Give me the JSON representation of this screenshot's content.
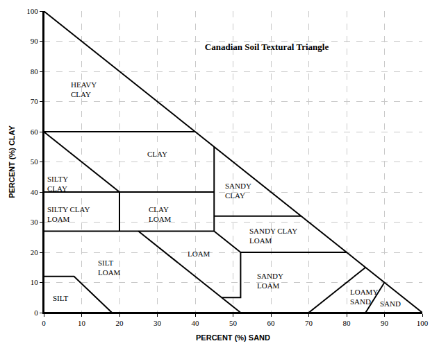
{
  "chart_data": {
    "type": "line",
    "title": "Canadian Soil Textural Triangle",
    "x_label": "PERCENT (%) SAND",
    "y_label": "PERCENT (%) CLAY",
    "xlim": [
      0,
      100
    ],
    "ylim": [
      0,
      100
    ],
    "xticks": [
      0,
      10,
      20,
      30,
      40,
      50,
      60,
      70,
      80,
      90,
      100
    ],
    "yticks": [
      0,
      10,
      20,
      30,
      40,
      50,
      60,
      70,
      80,
      90,
      100
    ],
    "grid": true,
    "color": "#000000",
    "series": [
      {
        "x": [
          0,
          100,
          0,
          0
        ],
        "values": [
          0,
          0,
          100,
          0
        ]
      },
      {
        "x": [
          0,
          40
        ],
        "values": [
          60,
          60
        ]
      },
      {
        "x": [
          0,
          20
        ],
        "values": [
          60,
          40
        ]
      },
      {
        "x": [
          0,
          45
        ],
        "values": [
          40,
          40
        ]
      },
      {
        "x": [
          20,
          20
        ],
        "values": [
          40,
          27
        ]
      },
      {
        "x": [
          0,
          45
        ],
        "values": [
          27,
          27
        ]
      },
      {
        "x": [
          45,
          45
        ],
        "values": [
          27,
          55
        ]
      },
      {
        "x": [
          45,
          68
        ],
        "values": [
          32,
          32
        ]
      },
      {
        "x": [
          45,
          52,
          80
        ],
        "values": [
          27,
          20,
          20
        ]
      },
      {
        "x": [
          52,
          52,
          47
        ],
        "values": [
          20,
          5,
          5
        ]
      },
      {
        "x": [
          25,
          52
        ],
        "values": [
          27,
          0
        ]
      },
      {
        "x": [
          0,
          8,
          18
        ],
        "values": [
          12,
          12,
          0
        ]
      },
      {
        "x": [
          70,
          85
        ],
        "values": [
          0,
          15
        ]
      },
      {
        "x": [
          85,
          90
        ],
        "values": [
          0,
          10
        ]
      }
    ],
    "annotations": [
      {
        "text": "HEAVY\nCLAY",
        "x": 6.8,
        "y": 74
      },
      {
        "text": "CLAY",
        "x": 27,
        "y": 52.6
      },
      {
        "text": "SILTY\nCLAY",
        "x": 0.5,
        "y": 42.8
      },
      {
        "text": "SANDY\nCLAY",
        "x": 47.5,
        "y": 40.5
      },
      {
        "text": "SILTY CLAY\nLOAM",
        "x": 0.5,
        "y": 32.6
      },
      {
        "text": "CLAY\nLOAM",
        "x": 27.3,
        "y": 32.6
      },
      {
        "text": "SANDY CLAY\nLOAM",
        "x": 54,
        "y": 25.5
      },
      {
        "text": "LOAM",
        "x": 37.6,
        "y": 19.5
      },
      {
        "text": "SILT\nLOAM",
        "x": 14,
        "y": 15
      },
      {
        "text": "SANDY\nLOAM",
        "x": 56,
        "y": 10.5
      },
      {
        "text": "SILT",
        "x": 2,
        "y": 4.8
      },
      {
        "text": "LOAMY\nSAND",
        "x": 80.5,
        "y": 5.3
      },
      {
        "text": "SAND",
        "x": 88.4,
        "y": 3
      }
    ]
  }
}
